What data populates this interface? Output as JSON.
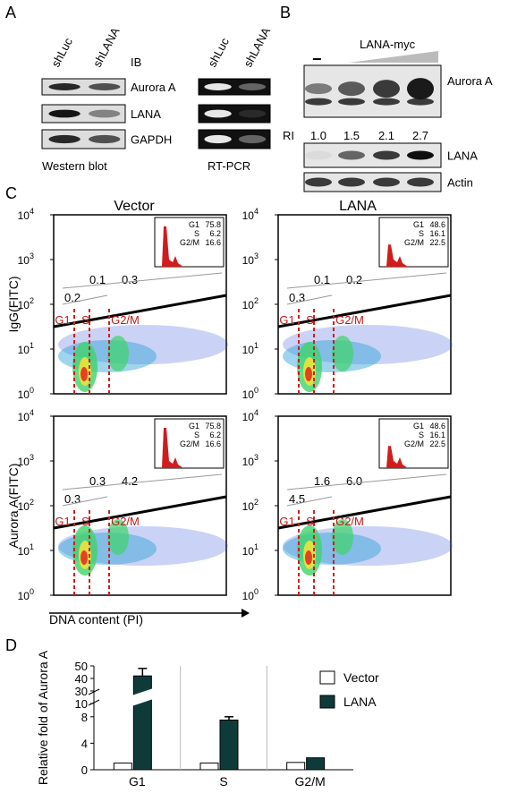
{
  "A": {
    "label": "A",
    "ib": "IB",
    "rows": [
      "Aurora A",
      "LANA",
      "GAPDH"
    ],
    "western": {
      "lanes": [
        "shLuc",
        "shLANA"
      ],
      "caption": "Western blot"
    },
    "rtpcr": {
      "lanes": [
        "shLuc",
        "shLANA"
      ],
      "caption": "RT-PCR"
    }
  },
  "B": {
    "label": "B",
    "control": "−",
    "treatment": "LANA-myc",
    "rows": [
      "Aurora A",
      "LANA",
      "Actin"
    ],
    "ri_label": "RI",
    "ri": [
      "1.0",
      "1.5",
      "2.1",
      "2.7"
    ]
  },
  "C": {
    "label": "C",
    "columns": [
      "Vector",
      "LANA"
    ],
    "row_labels": [
      "IgG(FITC)",
      "Aurora A(FITC)"
    ],
    "x_label": "DNA content (PI)",
    "y_ticks": [
      {
        "base": "10",
        "exp": "4"
      },
      {
        "base": "10",
        "exp": "3"
      },
      {
        "base": "10",
        "exp": "2"
      },
      {
        "base": "10",
        "exp": "1"
      },
      {
        "base": "10",
        "exp": "0"
      }
    ],
    "gate_labels": [
      "G1",
      "S",
      "G2/M"
    ],
    "plots": [
      {
        "fractions": [
          "0.2",
          "0.1",
          "0.3"
        ],
        "inset": [
          [
            "G1",
            "75.8"
          ],
          [
            "S",
            "6.2"
          ],
          [
            "G2/M",
            "16.6"
          ]
        ]
      },
      {
        "fractions": [
          "0.3",
          "0.1",
          "0.2"
        ],
        "inset": [
          [
            "G1",
            "48.6"
          ],
          [
            "S",
            "16.1"
          ],
          [
            "G2/M",
            "22.5"
          ]
        ]
      },
      {
        "fractions": [
          "0.3",
          "0.3",
          "4.2"
        ],
        "inset": [
          [
            "G1",
            "75.8"
          ],
          [
            "S",
            "6.2"
          ],
          [
            "G2/M",
            "16.6"
          ]
        ]
      },
      {
        "fractions": [
          "4.5",
          "1.6",
          "6.0"
        ],
        "inset": [
          [
            "G1",
            "48.6"
          ],
          [
            "S",
            "16.1"
          ],
          [
            "G2/M",
            "22.5"
          ]
        ]
      }
    ]
  },
  "D": {
    "label": "D"
  },
  "chart_data": {
    "type": "bar",
    "y_label": "Relative fold of Aurora A",
    "categories": [
      "G1",
      "S",
      "G2/M"
    ],
    "series": [
      {
        "name": "Vector",
        "color": "#ffffff",
        "values": [
          1,
          1,
          1.1
        ]
      },
      {
        "name": "LANA",
        "color": "#0e3b3a",
        "values": [
          42,
          7.5,
          1.8
        ],
        "errors": [
          6,
          0.5,
          0
        ]
      }
    ],
    "ylim": [
      0,
      50
    ],
    "axis_break": [
      10,
      30
    ],
    "yticks": [
      0,
      4,
      8,
      10,
      30,
      40,
      50
    ]
  }
}
